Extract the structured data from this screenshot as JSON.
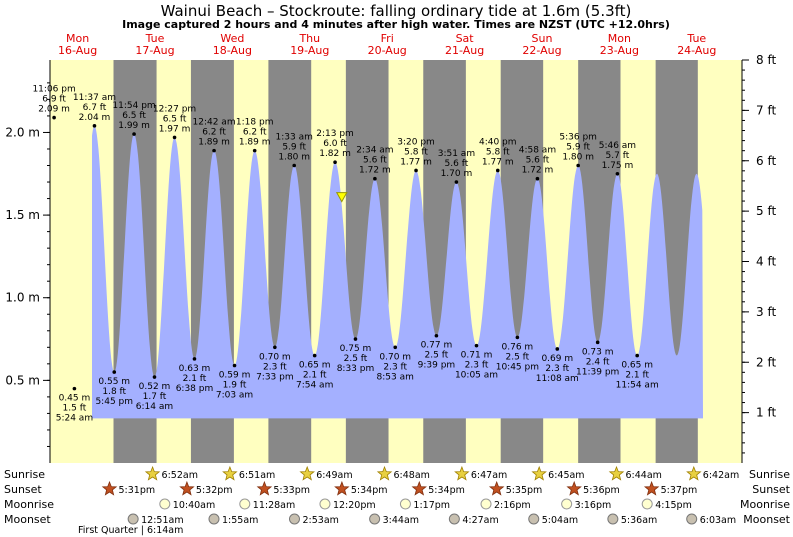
{
  "title": "Wainui Beach – Stockroute: falling  ordinary tide at 1.6m (5.3ft)",
  "subtitle": "Image captured 2 hours and 4 minutes after high water. Times are NZST (UTC +12.0hrs)",
  "days": [
    {
      "name": "Mon",
      "date": "16-Aug"
    },
    {
      "name": "Tue",
      "date": "17-Aug"
    },
    {
      "name": "Wed",
      "date": "18-Aug"
    },
    {
      "name": "Thu",
      "date": "19-Aug"
    },
    {
      "name": "Fri",
      "date": "20-Aug"
    },
    {
      "name": "Sat",
      "date": "21-Aug"
    },
    {
      "name": "Sun",
      "date": "22-Aug"
    },
    {
      "name": "Mon",
      "date": "23-Aug"
    },
    {
      "name": "Tue",
      "date": "24-Aug"
    }
  ],
  "chart_data": {
    "type": "area",
    "x_unit": "hours from 00:00 Mon 16-Aug (NZST)",
    "y_left_label": "m",
    "y_right_label": "ft",
    "y_left_ticks": [
      "0.5 m",
      "1.0 m",
      "1.5 m",
      "2.0 m"
    ],
    "y_left_tick_values": [
      0.5,
      1.0,
      1.5,
      2.0
    ],
    "y_right_ticks": [
      "1 ft",
      "2 ft",
      "3 ft",
      "4 ft",
      "5 ft",
      "6 ft",
      "7 ft",
      "8 ft"
    ],
    "y_right_tick_values": [
      1,
      2,
      3,
      4,
      5,
      6,
      7,
      8
    ],
    "ylim_m": [
      0.0,
      2.4384
    ],
    "xlim_hours": [
      0,
      216
    ],
    "fill_color": "#a4b0ff",
    "night_color": "#888888",
    "day_color": "#ffffc0",
    "tides": [
      {
        "type": "high",
        "time": "11:06 pm",
        "ft": "6.9 ft",
        "m": "2.09 m",
        "hours": -0.9,
        "value": 2.09
      },
      {
        "type": "low",
        "time": "5:24 am",
        "ft": "1.5 ft",
        "m": "0.45 m",
        "hours": 5.4,
        "value": 0.45
      },
      {
        "type": "high",
        "time": "11:37 am",
        "ft": "6.7 ft",
        "m": "2.04 m",
        "hours": 11.62,
        "value": 2.04
      },
      {
        "type": "low",
        "time": "5:45 pm",
        "ft": "1.8 ft",
        "m": "0.55 m",
        "hours": 17.75,
        "value": 0.55
      },
      {
        "type": "high",
        "time": "11:54 pm",
        "ft": "6.5 ft",
        "m": "1.99 m",
        "hours": 23.9,
        "value": 1.99
      },
      {
        "type": "low",
        "time": "6:14 am",
        "ft": "1.7 ft",
        "m": "0.52 m",
        "hours": 30.23,
        "value": 0.52
      },
      {
        "type": "high",
        "time": "12:27 pm",
        "ft": "6.5 ft",
        "m": "1.97 m",
        "hours": 36.45,
        "value": 1.97
      },
      {
        "type": "low",
        "time": "6:38 pm",
        "ft": "2.1 ft",
        "m": "0.63 m",
        "hours": 42.63,
        "value": 0.63
      },
      {
        "type": "high",
        "time": "12:42 am",
        "ft": "6.2 ft",
        "m": "1.89 m",
        "hours": 48.7,
        "value": 1.89
      },
      {
        "type": "low",
        "time": "7:03 am",
        "ft": "1.9 ft",
        "m": "0.59 m",
        "hours": 55.05,
        "value": 0.59
      },
      {
        "type": "high",
        "time": "1:18 pm",
        "ft": "6.2 ft",
        "m": "1.89 m",
        "hours": 61.3,
        "value": 1.89
      },
      {
        "type": "low",
        "time": "7:33 pm",
        "ft": "2.3 ft",
        "m": "0.70 m",
        "hours": 67.55,
        "value": 0.7
      },
      {
        "type": "high",
        "time": "1:33 am",
        "ft": "5.9 ft",
        "m": "1.80 m",
        "hours": 73.55,
        "value": 1.8
      },
      {
        "type": "low",
        "time": "7:54 am",
        "ft": "2.1 ft",
        "m": "0.65 m",
        "hours": 79.9,
        "value": 0.65
      },
      {
        "type": "high",
        "time": "2:13 pm",
        "ft": "6.0 ft",
        "m": "1.82 m",
        "hours": 86.22,
        "value": 1.82
      },
      {
        "type": "low",
        "time": "8:33 pm",
        "ft": "2.5 ft",
        "m": "0.75 m",
        "hours": 92.55,
        "value": 0.75
      },
      {
        "type": "high",
        "time": "2:34 am",
        "ft": "5.6 ft",
        "m": "1.72 m",
        "hours": 98.57,
        "value": 1.72
      },
      {
        "type": "low",
        "time": "8:53 am",
        "ft": "2.3 ft",
        "m": "0.70 m",
        "hours": 104.88,
        "value": 0.7
      },
      {
        "type": "high",
        "time": "3:20 pm",
        "ft": "5.8 ft",
        "m": "1.77 m",
        "hours": 111.33,
        "value": 1.77
      },
      {
        "type": "low",
        "time": "9:39 pm",
        "ft": "2.5 ft",
        "m": "0.77 m",
        "hours": 117.65,
        "value": 0.77
      },
      {
        "type": "high",
        "time": "3:51 am",
        "ft": "5.6 ft",
        "m": "1.70 m",
        "hours": 123.85,
        "value": 1.7
      },
      {
        "type": "low",
        "time": "10:05 am",
        "ft": "2.3 ft",
        "m": "0.71 m",
        "hours": 130.08,
        "value": 0.71
      },
      {
        "type": "high",
        "time": "4:40 pm",
        "ft": "5.8 ft",
        "m": "1.77 m",
        "hours": 136.67,
        "value": 1.77
      },
      {
        "type": "low",
        "time": "10:45 pm",
        "ft": "2.5 ft",
        "m": "0.76 m",
        "hours": 142.75,
        "value": 0.76
      },
      {
        "type": "high",
        "time": "4:58 am",
        "ft": "5.6 ft",
        "m": "1.72 m",
        "hours": 148.97,
        "value": 1.72
      },
      {
        "type": "low",
        "time": "11:08 am",
        "ft": "2.3 ft",
        "m": "0.69 m",
        "hours": 155.13,
        "value": 0.69
      },
      {
        "type": "high",
        "time": "5:36 pm",
        "ft": "5.9 ft",
        "m": "1.80 m",
        "hours": 161.6,
        "value": 1.8
      },
      {
        "type": "low",
        "time": "11:39 pm",
        "ft": "2.4 ft",
        "m": "0.73 m",
        "hours": 167.65,
        "value": 0.73
      },
      {
        "type": "high",
        "time": "5:46 am",
        "ft": "5.7 ft",
        "m": "1.75 m",
        "hours": 173.77,
        "value": 1.75
      },
      {
        "type": "low",
        "time": "11:54 am",
        "ft": "2.1 ft",
        "m": "0.65 m",
        "hours": 179.9,
        "value": 0.65
      }
    ],
    "current": {
      "hours": 88.3,
      "value": 1.6
    }
  },
  "rows": {
    "sunrise_label": "Sunrise",
    "sunset_label": "Sunset",
    "moonrise_label": "Moonrise",
    "moonset_label": "Moonset"
  },
  "sunrise": [
    {
      "time": "6:52am",
      "hours": 30.87
    },
    {
      "time": "6:51am",
      "hours": 54.85
    },
    {
      "time": "6:49am",
      "hours": 78.82
    },
    {
      "time": "6:48am",
      "hours": 102.8
    },
    {
      "time": "6:47am",
      "hours": 126.78
    },
    {
      "time": "6:45am",
      "hours": 150.75
    },
    {
      "time": "6:44am",
      "hours": 174.73
    },
    {
      "time": "6:42am",
      "hours": 198.7
    }
  ],
  "sunset": [
    {
      "time": "5:31pm",
      "hours": 17.52
    },
    {
      "time": "5:32pm",
      "hours": 41.53
    },
    {
      "time": "5:33pm",
      "hours": 65.55
    },
    {
      "time": "5:34pm",
      "hours": 89.57
    },
    {
      "time": "5:34pm",
      "hours": 113.57
    },
    {
      "time": "5:35pm",
      "hours": 137.58
    },
    {
      "time": "5:36pm",
      "hours": 161.6
    },
    {
      "time": "5:37pm",
      "hours": 185.62
    }
  ],
  "moonrise": [
    {
      "time": "10:40am",
      "hours": 34.67
    },
    {
      "time": "11:28am",
      "hours": 59.47
    },
    {
      "time": "12:20pm",
      "hours": 84.33
    },
    {
      "time": "1:17pm",
      "hours": 109.28
    },
    {
      "time": "2:16pm",
      "hours": 134.27
    },
    {
      "time": "3:16pm",
      "hours": 159.27
    },
    {
      "time": "4:15pm",
      "hours": 184.25
    }
  ],
  "moonset": [
    {
      "time": "12:51am",
      "hours": 24.85
    },
    {
      "time": "1:55am",
      "hours": 49.92
    },
    {
      "time": "2:53am",
      "hours": 74.88
    },
    {
      "time": "3:44am",
      "hours": 99.73
    },
    {
      "time": "4:27am",
      "hours": 124.45
    },
    {
      "time": "5:04am",
      "hours": 149.07
    },
    {
      "time": "5:36am",
      "hours": 173.6
    },
    {
      "time": "6:03am",
      "hours": 198.05
    }
  ],
  "moon_phase_note": "First Quarter | 6:14am"
}
